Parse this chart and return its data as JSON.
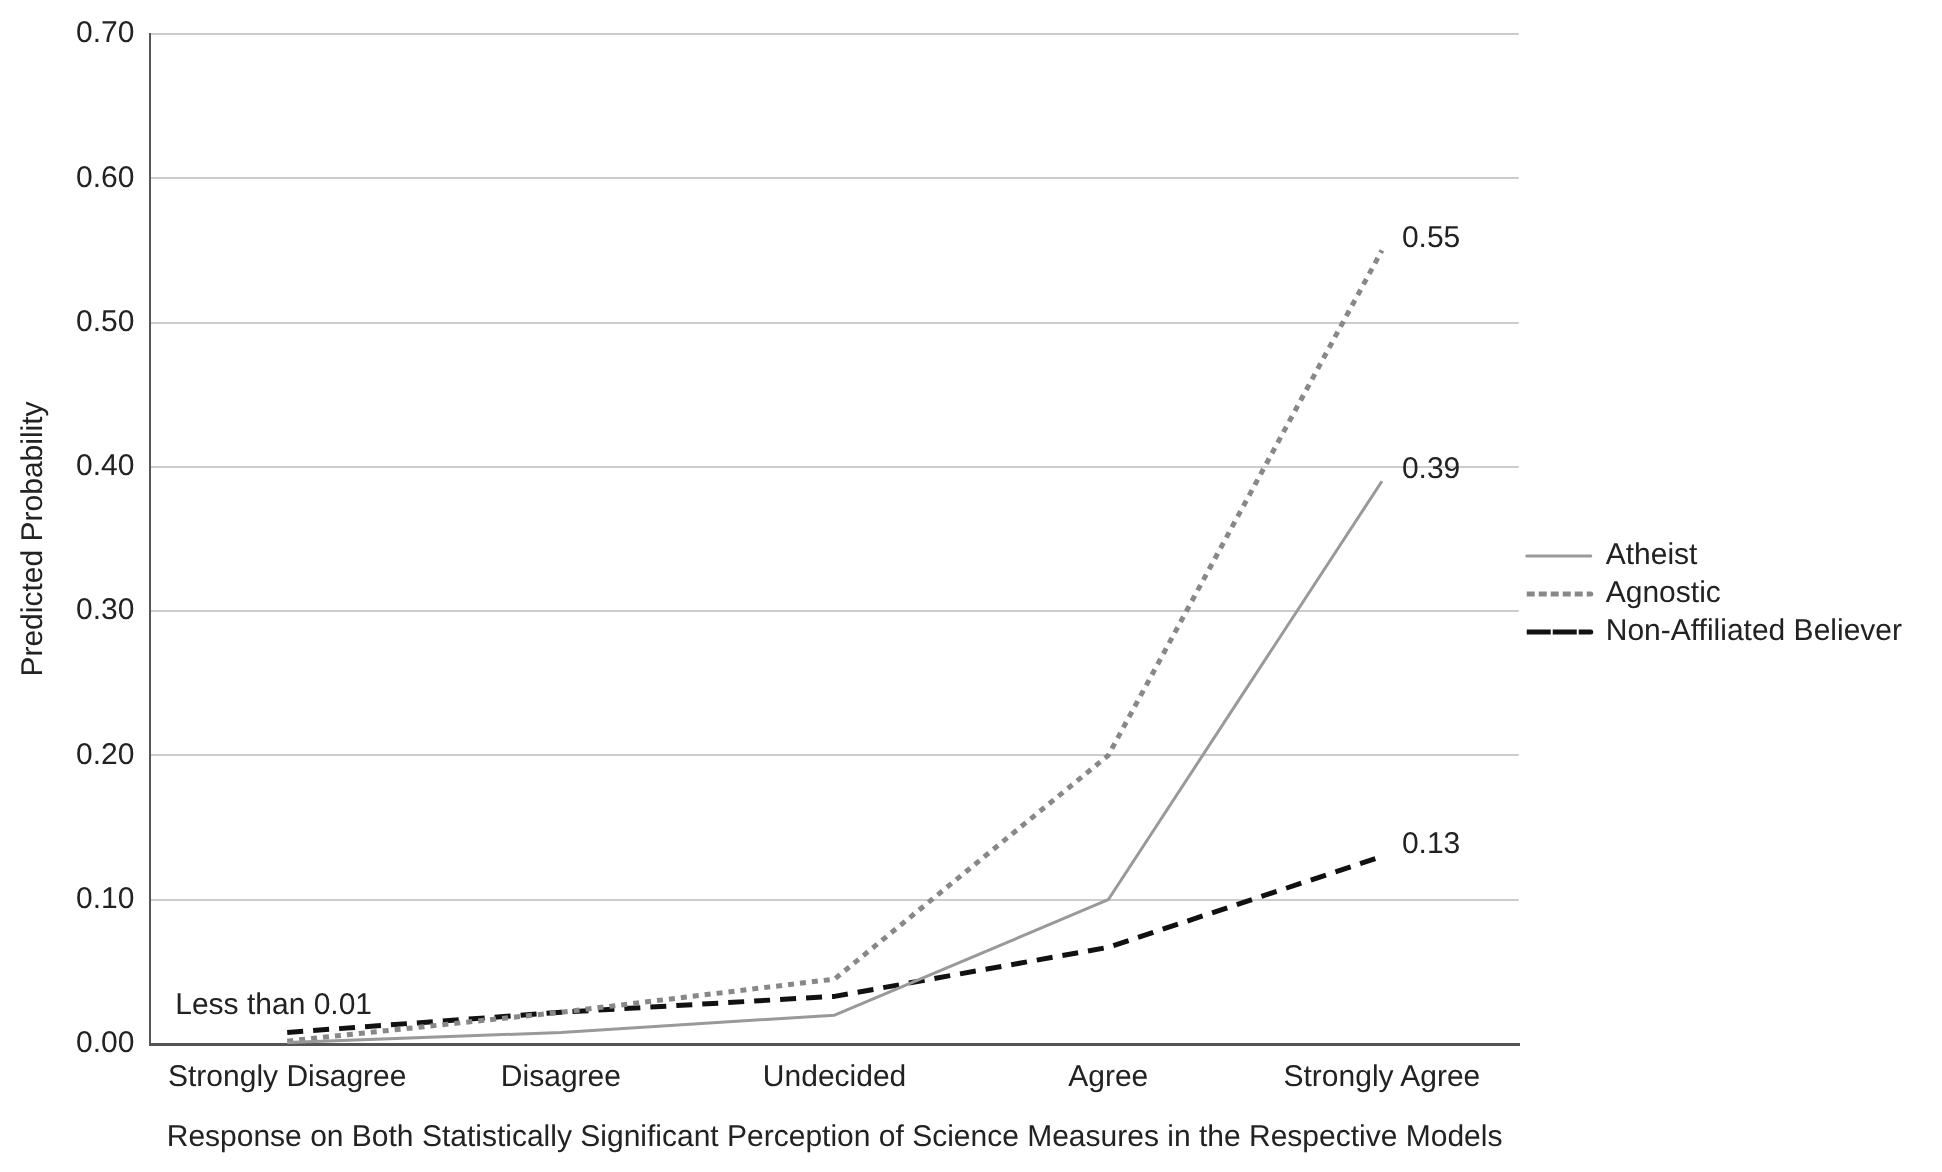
{
  "chart_data": {
    "type": "line",
    "xlabel": "Response on Both Statistically Significant Perception of Science Measures in the Respective Models",
    "ylabel": "Predicted Probability",
    "categories": [
      "Strongly Disagree",
      "Disagree",
      "Undecided",
      "Agree",
      "Strongly Agree"
    ],
    "series": [
      {
        "name": "Atheist",
        "color": "#999999",
        "line_style": "solid",
        "values": [
          0.001,
          0.008,
          0.02,
          0.1,
          0.39
        ]
      },
      {
        "name": "Agnostic",
        "color": "#888888",
        "line_style": "dotted",
        "values": [
          0.002,
          0.022,
          0.045,
          0.2,
          0.55
        ]
      },
      {
        "name": "Non-Affiliated Believer",
        "color": "#111111",
        "line_style": "dashed",
        "values": [
          0.008,
          0.022,
          0.033,
          0.067,
          0.13
        ]
      }
    ],
    "ylim": [
      0,
      0.7
    ],
    "yticks": [
      {
        "value": 0,
        "label": "0.00"
      },
      {
        "value": 0.1,
        "label": "0.10"
      },
      {
        "value": 0.2,
        "label": "0.20"
      },
      {
        "value": 0.3,
        "label": "0.30"
      },
      {
        "value": 0.4,
        "label": "0.40"
      },
      {
        "value": 0.5,
        "label": "0.50"
      },
      {
        "value": 0.6,
        "label": "0.60"
      },
      {
        "value": 0.7,
        "label": "0.70"
      }
    ],
    "grid": "y",
    "legend": "right",
    "marker": "none",
    "annotations": [
      {
        "text": "0.55",
        "x": "Strongly Agree",
        "y": 0.55
      },
      {
        "text": "0.39",
        "x": "Strongly Agree",
        "y": 0.39
      },
      {
        "text": "0.13",
        "x": "Strongly Agree",
        "y": 0.13
      },
      {
        "text": "Less than 0.01",
        "x": "Strongly Disagree",
        "y": 0.008
      }
    ]
  }
}
